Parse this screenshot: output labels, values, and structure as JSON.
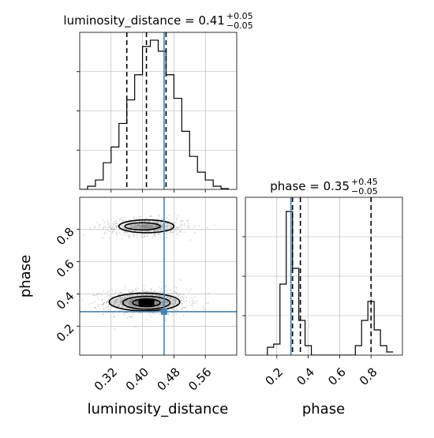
{
  "chart_data": {
    "type": "corner",
    "parameters": [
      "luminosity_distance",
      "phase"
    ],
    "truths": {
      "luminosity_distance": 0.455,
      "phase": 0.29
    },
    "truth_color": "#4682b4",
    "titles": {
      "luminosity_distance": {
        "prefix": "luminosity_distance = ",
        "value": "0.41",
        "plus": "+0.05",
        "minus": "−0.05"
      },
      "phase": {
        "prefix": "phase = ",
        "value": "0.35",
        "plus": "+0.45",
        "minus": "−0.05"
      }
    },
    "axis_labels": {
      "luminosity_distance": "luminosity_distance",
      "phase": "phase"
    },
    "panels": {
      "hist_distance": {
        "xlim": [
          0.24,
          0.64
        ],
        "ylim": [
          0,
          1.0
        ],
        "bin_edges": [
          0.24,
          0.26,
          0.28,
          0.3,
          0.32,
          0.34,
          0.36,
          0.38,
          0.4,
          0.42,
          0.44,
          0.46,
          0.48,
          0.5,
          0.52,
          0.54,
          0.56,
          0.58,
          0.6,
          0.62
        ],
        "counts": [
          0,
          0.02,
          0.06,
          0.17,
          0.27,
          0.42,
          0.57,
          0.73,
          0.91,
          0.95,
          0.88,
          0.73,
          0.58,
          0.37,
          0.21,
          0.11,
          0.06,
          0.02,
          0.005
        ],
        "quantiles": [
          0.36,
          0.41,
          0.46
        ],
        "ticks": [
          0.32,
          0.4,
          0.48,
          0.56
        ],
        "grid": true
      },
      "hist_phase": {
        "xlim": [
          0.0,
          1.0
        ],
        "ylim": [
          0,
          1.0
        ],
        "bin_edges": [
          0.14,
          0.18,
          0.22,
          0.26,
          0.3,
          0.34,
          0.38,
          0.42,
          0.46,
          0.5,
          0.54,
          0.58,
          0.62,
          0.66,
          0.7,
          0.74,
          0.78,
          0.82,
          0.86,
          0.9,
          0.94
        ],
        "counts": [
          0.05,
          0.07,
          0.45,
          0.91,
          0.55,
          0.22,
          0.06,
          0,
          0,
          0,
          0,
          0,
          0,
          0,
          0.06,
          0.22,
          0.34,
          0.16,
          0.06,
          0.02
        ],
        "quantiles": [
          0.3,
          0.35,
          0.8
        ],
        "ticks": [
          0.2,
          0.4,
          0.6,
          0.8
        ],
        "grid": true
      },
      "scatter_2d": {
        "xlim": [
          0.24,
          0.64
        ],
        "ylim": [
          0.02,
          1.0
        ],
        "yticks": [
          0.2,
          0.4,
          0.6,
          0.8
        ],
        "xticks": [
          0.32,
          0.4,
          0.48,
          0.56
        ],
        "modes": [
          {
            "cx": 0.41,
            "cy": 0.35,
            "sx": 0.05,
            "sy": 0.04,
            "weight": 0.62
          },
          {
            "cx": 0.41,
            "cy": 0.815,
            "sx": 0.045,
            "sy": 0.028,
            "weight": 0.38
          }
        ],
        "contours": [
          {
            "level": "outer",
            "ellipses": [
              {
                "cx": 0.405,
                "cy": 0.35,
                "rx": 0.09,
                "ry": 0.055
              },
              {
                "cx": 0.41,
                "cy": 0.82,
                "rx": 0.07,
                "ry": 0.04
              }
            ]
          },
          {
            "level": "mid",
            "ellipses": [
              {
                "cx": 0.41,
                "cy": 0.345,
                "rx": 0.06,
                "ry": 0.04
              },
              {
                "cx": 0.4,
                "cy": 0.82,
                "rx": 0.045,
                "ry": 0.022
              }
            ]
          },
          {
            "level": "inner",
            "ellipses": [
              {
                "cx": 0.41,
                "cy": 0.345,
                "rx": 0.035,
                "ry": 0.024
              }
            ]
          }
        ],
        "grid": true
      }
    }
  }
}
